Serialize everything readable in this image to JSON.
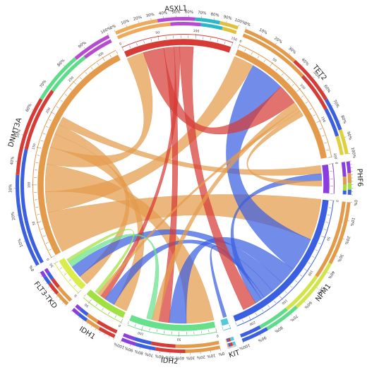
{
  "chart_data": {
    "type": "chord",
    "segments": [
      {
        "name": "ASXL1",
        "total": 150,
        "color": "#d63b36",
        "mix": [
          "#f0a85a",
          "#b64ad0",
          "#28b8c8",
          "#e0c040"
        ]
      },
      {
        "name": "TET2",
        "total": 200,
        "color": "#e39b4b",
        "mix": [
          "#e39b4b",
          "#d63b36",
          "#3a5fe0",
          "#e0d040"
        ]
      },
      {
        "name": "PHF6",
        "total": 40,
        "color": "#8b3ee0",
        "mix": [
          "#8b3ee0",
          "#e39b4b",
          "#a0e040",
          "#3a5fe0"
        ]
      },
      {
        "name": "NPM1",
        "total": 220,
        "color": "#3a5fe0",
        "mix": [
          "#e39b4b",
          "#d3e44a",
          "#5fdc8a",
          "#3a5fe0"
        ]
      },
      {
        "name": "KIT",
        "total": 10,
        "color": "#55c8e0",
        "mix": [
          "#55c8e0",
          "#d63b36",
          "#3a5fe0",
          "#e39b4b"
        ]
      },
      {
        "name": "IDH2",
        "total": 120,
        "color": "#66e08a",
        "mix": [
          "#e39b4b",
          "#d63b36",
          "#3a5fe0",
          "#8b3ee0"
        ]
      },
      {
        "name": "IDH1",
        "total": 60,
        "color": "#a0e040",
        "mix": [
          "#d63b36",
          "#e39b4b",
          "#3a5fe0",
          "#8b3ee0"
        ]
      },
      {
        "name": "FLT3-TKD",
        "total": 50,
        "color": "#d9ec4a",
        "mix": [
          "#e39b4b",
          "#d63b36",
          "#3a5fe0",
          "#8b3ee0"
        ]
      },
      {
        "name": "DNMT3A",
        "total": 320,
        "color": "#e39b4b",
        "mix": [
          "#3a5fe0",
          "#d63b36",
          "#5fdc8a",
          "#b64ad0"
        ]
      }
    ],
    "links": [
      {
        "source": "DNMT3A",
        "target": "NPM1",
        "value": 60
      },
      {
        "source": "DNMT3A",
        "target": "TET2",
        "value": 30
      },
      {
        "source": "DNMT3A",
        "target": "IDH2",
        "value": 40
      },
      {
        "source": "DNMT3A",
        "target": "ASXL1",
        "value": 25
      },
      {
        "source": "DNMT3A",
        "target": "IDH1",
        "value": 20
      },
      {
        "source": "DNMT3A",
        "target": "FLT3-TKD",
        "value": 15
      },
      {
        "source": "DNMT3A",
        "target": "PHF6",
        "value": 12
      },
      {
        "source": "NPM1",
        "target": "TET2",
        "value": 50
      },
      {
        "source": "NPM1",
        "target": "IDH2",
        "value": 25
      },
      {
        "source": "NPM1",
        "target": "FLT3-TKD",
        "value": 18
      },
      {
        "source": "NPM1",
        "target": "IDH1",
        "value": 15
      },
      {
        "source": "NPM1",
        "target": "KIT",
        "value": 5
      },
      {
        "source": "NPM1",
        "target": "PHF6",
        "value": 10
      },
      {
        "source": "ASXL1",
        "target": "TET2",
        "value": 30
      },
      {
        "source": "ASXL1",
        "target": "IDH2",
        "value": 15
      },
      {
        "source": "ASXL1",
        "target": "IDH1",
        "value": 8
      },
      {
        "source": "ASXL1",
        "target": "NPM1",
        "value": 20
      },
      {
        "source": "TET2",
        "target": "IDH2",
        "value": 10
      },
      {
        "source": "TET2",
        "target": "IDH1",
        "value": 5
      },
      {
        "source": "TET2",
        "target": "PHF6",
        "value": 8
      },
      {
        "source": "IDH2",
        "target": "FLT3-TKD",
        "value": 8
      },
      {
        "source": "IDH1",
        "target": "FLT3-TKD",
        "value": 5
      }
    ]
  }
}
